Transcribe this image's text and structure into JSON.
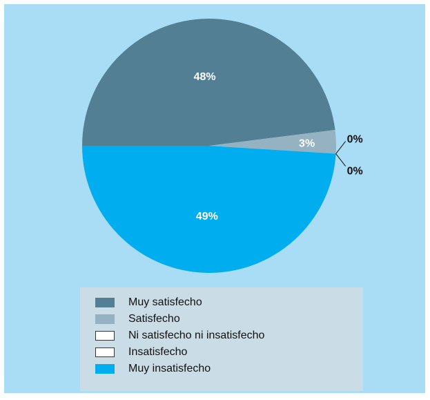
{
  "chart_data": {
    "type": "pie",
    "categories": [
      "Muy satisfecho",
      "Satisfecho",
      "Ni satisfecho ni insatisfecho",
      "Insatisfecho",
      "Muy insatisfecho"
    ],
    "values": [
      48,
      3,
      0,
      0,
      49
    ],
    "labels": [
      "48%",
      "3%",
      "0%",
      "0%",
      "49%"
    ],
    "colors": [
      "#527f93",
      "#94b2c1",
      "#ffffff",
      "#ffffff",
      "#00adee"
    ],
    "legend_position": "bottom",
    "title": "",
    "subtitle": ""
  }
}
